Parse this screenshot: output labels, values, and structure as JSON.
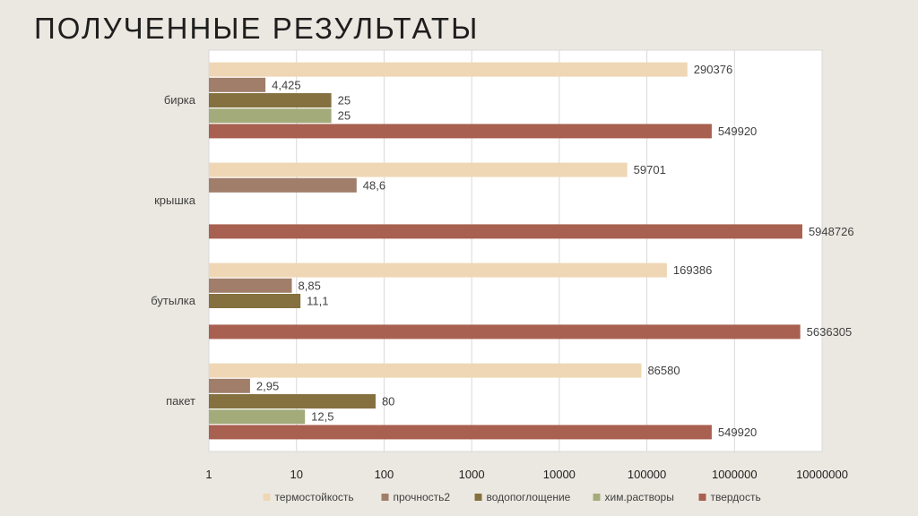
{
  "slide": {
    "title": "ПОЛУЧЕННЫЕ РЕЗУЛЬТАТЫ"
  },
  "chart_data": {
    "type": "bar",
    "orientation": "horizontal",
    "x_scale": "log",
    "xlim": [
      1,
      10000000
    ],
    "x_ticks": [
      "1",
      "10",
      "100",
      "1000",
      "10000",
      "100000",
      "1000000",
      "10000000"
    ],
    "grid": true,
    "legend_position": "bottom",
    "categories": [
      "бирка",
      "крышка",
      "бутылка",
      "пакет"
    ],
    "series": [
      {
        "name": "термостойкость",
        "color": "#efd7b5",
        "values": [
          290376,
          59701,
          169386,
          86580
        ],
        "labels": [
          "290376",
          "59701",
          "169386",
          "86580"
        ]
      },
      {
        "name": "прочность2",
        "color": "#a07e69",
        "values": [
          4.425,
          48.6,
          8.85,
          2.95
        ],
        "labels": [
          "4,425",
          "48,6",
          "8,85",
          "2,95"
        ]
      },
      {
        "name": "водопоглощение",
        "color": "#85703f",
        "values": [
          25,
          null,
          11.1,
          80
        ],
        "labels": [
          "25",
          "",
          "11,1",
          "80"
        ]
      },
      {
        "name": "хим.растворы",
        "color": "#a4ab7b",
        "values": [
          25,
          null,
          null,
          12.5
        ],
        "labels": [
          "25",
          "",
          "",
          "12,5"
        ]
      },
      {
        "name": "твердость",
        "color": "#a86050",
        "values": [
          549920,
          5948726,
          5636305,
          549920
        ],
        "labels": [
          "549920",
          "5948726",
          "5636305",
          "549920"
        ]
      }
    ]
  }
}
